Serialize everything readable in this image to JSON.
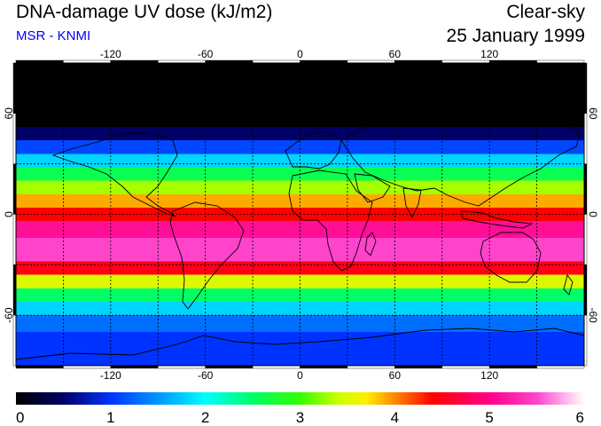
{
  "header": {
    "title": "DNA-damage UV dose (kJ/m2)",
    "subtitle": "MSR - KNMI",
    "condition": "Clear-sky",
    "date": "25 January 1999"
  },
  "map": {
    "projection": "equirectangular",
    "lon_range": [
      -180,
      180
    ],
    "lat_range": [
      -90,
      90
    ],
    "lon_ticks": [
      -120,
      -60,
      0,
      60,
      120
    ],
    "lon_tick_labels": [
      "-120",
      "-60",
      "0",
      "60",
      "120"
    ],
    "lat_ticks": [
      60,
      0,
      -60
    ],
    "lat_tick_labels": [
      "60",
      "0",
      "-60"
    ],
    "grid_spacing_deg": 30,
    "dose_bands": [
      {
        "lat_from": 90,
        "lat_to": 52,
        "dose": 0.0
      },
      {
        "lat_from": 52,
        "lat_to": 44,
        "dose": 0.5
      },
      {
        "lat_from": 44,
        "lat_to": 36,
        "dose": 1.1
      },
      {
        "lat_from": 36,
        "lat_to": 28,
        "dose": 1.8
      },
      {
        "lat_from": 28,
        "lat_to": 20,
        "dose": 2.6
      },
      {
        "lat_from": 20,
        "lat_to": 12,
        "dose": 3.3
      },
      {
        "lat_from": 12,
        "lat_to": 4,
        "dose": 3.9
      },
      {
        "lat_from": 4,
        "lat_to": -4,
        "dose": 4.4
      },
      {
        "lat_from": -4,
        "lat_to": -14,
        "dose": 5.1
      },
      {
        "lat_from": -14,
        "lat_to": -28,
        "dose": 5.5
      },
      {
        "lat_from": -28,
        "lat_to": -36,
        "dose": 4.5
      },
      {
        "lat_from": -36,
        "lat_to": -44,
        "dose": 3.5
      },
      {
        "lat_from": -44,
        "lat_to": -52,
        "dose": 2.5
      },
      {
        "lat_from": -52,
        "lat_to": -60,
        "dose": 1.8
      },
      {
        "lat_from": -60,
        "lat_to": -70,
        "dose": 1.3
      },
      {
        "lat_from": -70,
        "lat_to": -90,
        "dose": 1.0
      }
    ]
  },
  "colorbar": {
    "min": 0,
    "max": 6,
    "labels": [
      "0",
      "1",
      "2",
      "3",
      "4",
      "5",
      "6"
    ],
    "stops": [
      {
        "value": 0,
        "color": "#000000"
      },
      {
        "value": 0.5,
        "color": "#000066"
      },
      {
        "value": 1,
        "color": "#0033ff"
      },
      {
        "value": 1.6,
        "color": "#00aaff"
      },
      {
        "value": 2,
        "color": "#00ffff"
      },
      {
        "value": 2.5,
        "color": "#00ff66"
      },
      {
        "value": 3,
        "color": "#33ff00"
      },
      {
        "value": 3.4,
        "color": "#ccff00"
      },
      {
        "value": 3.7,
        "color": "#ffee00"
      },
      {
        "value": 4,
        "color": "#ff8800"
      },
      {
        "value": 4.4,
        "color": "#ff0000"
      },
      {
        "value": 5,
        "color": "#ff0088"
      },
      {
        "value": 5.5,
        "color": "#ff44cc"
      },
      {
        "value": 6,
        "color": "#ffffff"
      }
    ]
  }
}
